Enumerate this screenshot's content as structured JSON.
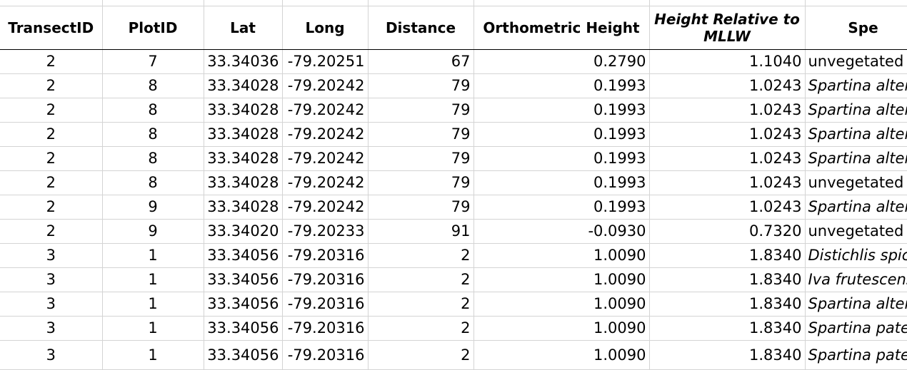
{
  "headers": [
    "TransectID",
    "PlotID",
    "Lat",
    "Long",
    "Distance",
    "Orthometric Height",
    "Height Relative to MLLW",
    "Spe"
  ],
  "rows": [
    {
      "transect": "2",
      "plot": "7",
      "lat": "33.34036",
      "long": "-79.20251",
      "distance": "67",
      "ortho": "0.2790",
      "mllw": "1.1040",
      "species": "unvegetated",
      "italic": false
    },
    {
      "transect": "2",
      "plot": "8",
      "lat": "33.34028",
      "long": "-79.20242",
      "distance": "79",
      "ortho": "0.1993",
      "mllw": "1.0243",
      "species": "Spartina alter",
      "italic": true
    },
    {
      "transect": "2",
      "plot": "8",
      "lat": "33.34028",
      "long": "-79.20242",
      "distance": "79",
      "ortho": "0.1993",
      "mllw": "1.0243",
      "species": "Spartina alter",
      "italic": true
    },
    {
      "transect": "2",
      "plot": "8",
      "lat": "33.34028",
      "long": "-79.20242",
      "distance": "79",
      "ortho": "0.1993",
      "mllw": "1.0243",
      "species": "Spartina alter",
      "italic": true
    },
    {
      "transect": "2",
      "plot": "8",
      "lat": "33.34028",
      "long": "-79.20242",
      "distance": "79",
      "ortho": "0.1993",
      "mllw": "1.0243",
      "species": "Spartina alter",
      "italic": true
    },
    {
      "transect": "2",
      "plot": "8",
      "lat": "33.34028",
      "long": "-79.20242",
      "distance": "79",
      "ortho": "0.1993",
      "mllw": "1.0243",
      "species": "unvegetated",
      "italic": false
    },
    {
      "transect": "2",
      "plot": "9",
      "lat": "33.34028",
      "long": "-79.20242",
      "distance": "79",
      "ortho": "0.1993",
      "mllw": "1.0243",
      "species": "Spartina alter",
      "italic": true
    },
    {
      "transect": "2",
      "plot": "9",
      "lat": "33.34020",
      "long": "-79.20233",
      "distance": "91",
      "ortho": "-0.0930",
      "mllw": "0.7320",
      "species": "unvegetated",
      "italic": false
    },
    {
      "transect": "3",
      "plot": "1",
      "lat": "33.34056",
      "long": "-79.20316",
      "distance": "2",
      "ortho": "1.0090",
      "mllw": "1.8340",
      "species": "Distichlis spic",
      "italic": true
    },
    {
      "transect": "3",
      "plot": "1",
      "lat": "33.34056",
      "long": "-79.20316",
      "distance": "2",
      "ortho": "1.0090",
      "mllw": "1.8340",
      "species": "Iva frutescens",
      "italic": true
    },
    {
      "transect": "3",
      "plot": "1",
      "lat": "33.34056",
      "long": "-79.20316",
      "distance": "2",
      "ortho": "1.0090",
      "mllw": "1.8340",
      "species": "Spartina alter",
      "italic": true
    },
    {
      "transect": "3",
      "plot": "1",
      "lat": "33.34056",
      "long": "-79.20316",
      "distance": "2",
      "ortho": "1.0090",
      "mllw": "1.8340",
      "species": "Spartina pate",
      "italic": true
    },
    {
      "transect": "3",
      "plot": "1",
      "lat": "33.34056",
      "long": "-79.20316",
      "distance": "2",
      "ortho": "1.0090",
      "mllw": "1.8340",
      "species": "Spartina pate",
      "italic": true
    }
  ]
}
